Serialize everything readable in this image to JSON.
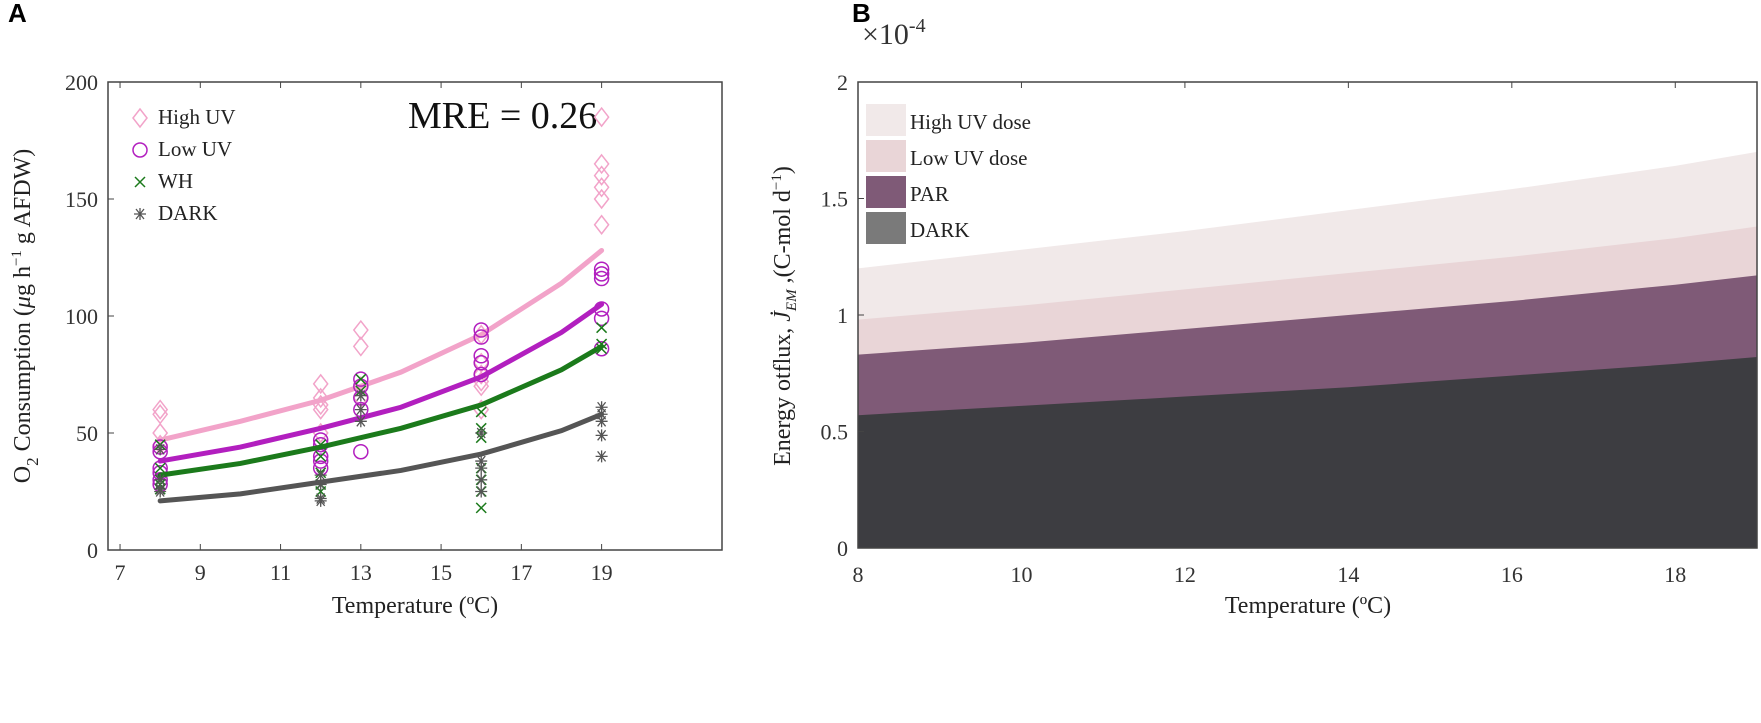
{
  "panels": {
    "a": "A",
    "b": "B"
  },
  "chart_data": [
    {
      "type": "scatter",
      "title": "",
      "annotation": "MRE = 0.26",
      "xlabel": "Temperature (ºC)",
      "ylabel": "O2 Consumption (μg h⁻¹ g AFDW)",
      "ylabel_parts": {
        "o": "O",
        "sub": "2",
        "rest": " Consumption (",
        "mu": "μ",
        "g": "g h",
        "sup": "−1",
        "end": " g AFDW)"
      },
      "xlim": [
        6.7,
        22
      ],
      "ylim": [
        0,
        200
      ],
      "xticks": [
        7,
        9,
        11,
        13,
        15,
        17,
        19
      ],
      "yticks": [
        0,
        50,
        100,
        150,
        200
      ],
      "legend_position": "top-left",
      "series": [
        {
          "name": "High UV",
          "marker": "diamond",
          "color": "#f2a3c9",
          "points": [
            [
              8,
              60
            ],
            [
              8,
              58
            ],
            [
              8,
              50
            ],
            [
              8,
              45
            ],
            [
              12,
              71
            ],
            [
              12,
              65
            ],
            [
              12,
              62
            ],
            [
              12,
              60
            ],
            [
              12,
              50
            ],
            [
              13,
              94
            ],
            [
              13,
              87
            ],
            [
              13,
              70
            ],
            [
              13,
              65
            ],
            [
              16,
              92
            ],
            [
              16,
              80
            ],
            [
              16,
              75
            ],
            [
              16,
              72
            ],
            [
              16,
              70
            ],
            [
              16,
              60
            ],
            [
              19,
              185
            ],
            [
              19,
              165
            ],
            [
              19,
              160
            ],
            [
              19,
              155
            ],
            [
              19,
              150
            ],
            [
              19,
              139
            ]
          ],
          "fit": [
            [
              8,
              47
            ],
            [
              10,
              55
            ],
            [
              12,
              64
            ],
            [
              14,
              76
            ],
            [
              16,
              92
            ],
            [
              18,
              114
            ],
            [
              19,
              128
            ]
          ]
        },
        {
          "name": "Low UV",
          "marker": "circle",
          "color": "#b21fbf",
          "points": [
            [
              8,
              44
            ],
            [
              8,
              42
            ],
            [
              8,
              35
            ],
            [
              8,
              33
            ],
            [
              8,
              30
            ],
            [
              8,
              28
            ],
            [
              12,
              47
            ],
            [
              12,
              45
            ],
            [
              12,
              40
            ],
            [
              12,
              38
            ],
            [
              12,
              35
            ],
            [
              13,
              73
            ],
            [
              13,
              70
            ],
            [
              13,
              65
            ],
            [
              13,
              60
            ],
            [
              13,
              42
            ],
            [
              16,
              94
            ],
            [
              16,
              91
            ],
            [
              16,
              83
            ],
            [
              16,
              80
            ],
            [
              16,
              75
            ],
            [
              19,
              120
            ],
            [
              19,
              118
            ],
            [
              19,
              116
            ],
            [
              19,
              103
            ],
            [
              19,
              99
            ],
            [
              19,
              86
            ]
          ],
          "fit": [
            [
              8,
              38
            ],
            [
              10,
              44
            ],
            [
              12,
              52
            ],
            [
              14,
              61
            ],
            [
              16,
              74
            ],
            [
              18,
              93
            ],
            [
              19,
              105
            ]
          ]
        },
        {
          "name": "WH",
          "marker": "x",
          "color": "#1b7a1b",
          "points": [
            [
              8,
              45
            ],
            [
              8,
              35
            ],
            [
              8,
              30
            ],
            [
              8,
              28
            ],
            [
              8,
              26
            ],
            [
              12,
              45
            ],
            [
              12,
              40
            ],
            [
              12,
              33
            ],
            [
              12,
              28
            ],
            [
              12,
              25
            ],
            [
              13,
              73
            ],
            [
              13,
              68
            ],
            [
              16,
              59
            ],
            [
              16,
              52
            ],
            [
              16,
              48
            ],
            [
              16,
              35
            ],
            [
              16,
              30
            ],
            [
              16,
              25
            ],
            [
              16,
              18
            ],
            [
              19,
              95
            ],
            [
              19,
              88
            ],
            [
              19,
              86
            ]
          ],
          "fit": [
            [
              8,
              32
            ],
            [
              10,
              37
            ],
            [
              12,
              44
            ],
            [
              14,
              52
            ],
            [
              16,
              62
            ],
            [
              18,
              77
            ],
            [
              19,
              87
            ]
          ]
        },
        {
          "name": "DARK",
          "marker": "asterisk",
          "color": "#555555",
          "points": [
            [
              8,
              43
            ],
            [
              8,
              30
            ],
            [
              8,
              26
            ],
            [
              8,
              25
            ],
            [
              12,
              32
            ],
            [
              12,
              28
            ],
            [
              12,
              22
            ],
            [
              12,
              21
            ],
            [
              13,
              66
            ],
            [
              13,
              60
            ],
            [
              13,
              55
            ],
            [
              16,
              50
            ],
            [
              16,
              38
            ],
            [
              16,
              35
            ],
            [
              16,
              30
            ],
            [
              16,
              25
            ],
            [
              19,
              61
            ],
            [
              19,
              58
            ],
            [
              19,
              55
            ],
            [
              19,
              49
            ],
            [
              19,
              40
            ]
          ],
          "fit": [
            [
              8,
              21
            ],
            [
              10,
              24
            ],
            [
              12,
              29
            ],
            [
              14,
              34
            ],
            [
              16,
              41
            ],
            [
              18,
              51
            ],
            [
              19,
              58
            ]
          ]
        }
      ]
    },
    {
      "type": "area",
      "title": "",
      "xlabel": "Temperature (ºC)",
      "ylabel": "Energy otflux, J̇EM ,(C-mol d⁻¹)",
      "ylabel_parts": {
        "a": "Energy otflux, ",
        "j": "J̇",
        "sub": "EM",
        "b": " ,(C-mol d",
        "sup": "−1",
        "c": ")"
      },
      "y_multiplier": "×10",
      "y_multiplier_exp": "-4",
      "xlim": [
        8,
        19
      ],
      "ylim": [
        0,
        2
      ],
      "xticks": [
        8,
        10,
        12,
        14,
        16,
        18
      ],
      "yticks": [
        0,
        0.5,
        1,
        1.5,
        2
      ],
      "legend_position": "top-left",
      "x": [
        8,
        10,
        12,
        14,
        16,
        18,
        19
      ],
      "series": [
        {
          "name": "High UV dose",
          "color": "#f1e9e9",
          "values": [
            1.2,
            1.28,
            1.36,
            1.45,
            1.54,
            1.64,
            1.7
          ]
        },
        {
          "name": "Low UV dose",
          "color": "#e9d5d7",
          "values": [
            0.98,
            1.04,
            1.11,
            1.18,
            1.25,
            1.33,
            1.38
          ]
        },
        {
          "name": "PAR",
          "color": "#7f5a77",
          "values": [
            0.83,
            0.88,
            0.94,
            1.0,
            1.06,
            1.13,
            1.17
          ]
        },
        {
          "name": "DARK",
          "color": "#3d3d41",
          "values": [
            0.57,
            0.61,
            0.65,
            0.69,
            0.74,
            0.79,
            0.82
          ]
        }
      ]
    }
  ]
}
